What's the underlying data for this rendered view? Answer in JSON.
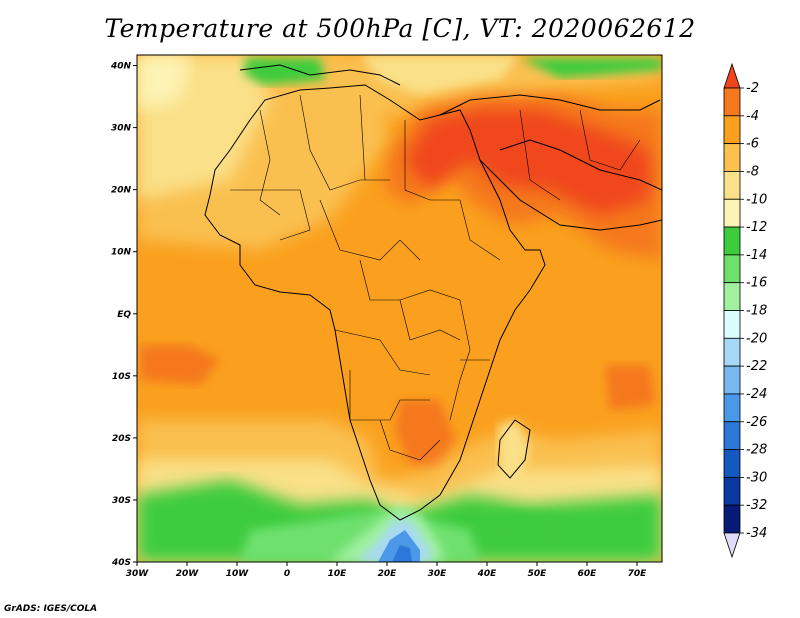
{
  "title": "Temperature at 500hPa [C], VT: 2020062612",
  "credit": "GrADS: IGES/COLA",
  "map": {
    "lon_range": [
      -30,
      75
    ],
    "lat_range": [
      -40,
      45
    ],
    "y_ticks": [
      "40N",
      "30N",
      "20N",
      "10N",
      "EQ",
      "10S",
      "20S",
      "30S",
      "40S"
    ],
    "x_ticks": [
      "30W",
      "20W",
      "10W",
      "0",
      "10E",
      "20E",
      "30E",
      "40E",
      "50E",
      "60E",
      "70E"
    ]
  },
  "colorbar": {
    "labels": [
      "-2",
      "-4",
      "-6",
      "-8",
      "-10",
      "-12",
      "-14",
      "-16",
      "-18",
      "-20",
      "-22",
      "-24",
      "-26",
      "-28",
      "-30",
      "-32",
      "-34"
    ],
    "colors": [
      "#f0461e",
      "#f5781e",
      "#faa01e",
      "#fac050",
      "#fae088",
      "#fdf3b4",
      "#3ccc3c",
      "#6ee06e",
      "#a0f0a0",
      "#dcfcfc",
      "#a8d8f8",
      "#78b8f0",
      "#4c98e8",
      "#2c78d8",
      "#1458c0",
      "#0838a0",
      "#061a78",
      "#e0dcf8"
    ]
  }
}
